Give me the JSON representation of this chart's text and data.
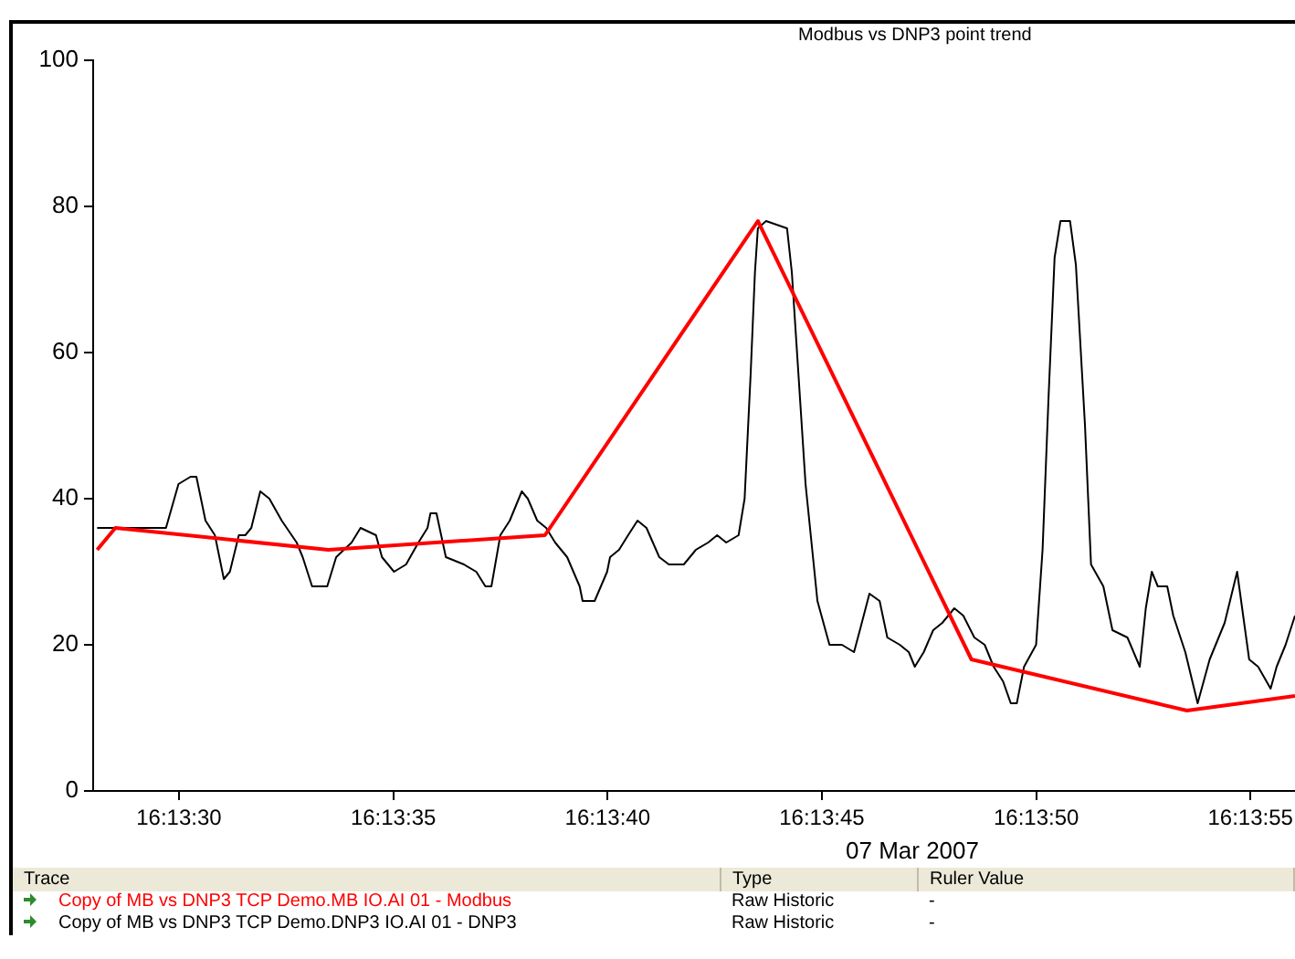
{
  "chart_data": {
    "type": "line",
    "title": "Modbus vs DNP3 point trend",
    "xlabel": "07 Mar 2007",
    "legend_title": "Trace",
    "annotations": [
      "Type",
      "Ruler Value",
      "Raw Historic",
      "-",
      "Raw Historic",
      "-"
    ],
    "xlim": [
      16.224444,
      16.232233
    ],
    "xticks": [
      {
        "value": 16.225,
        "label": "16:13:30"
      },
      {
        "value": 16.226389,
        "label": "16:13:35"
      },
      {
        "value": 16.227778,
        "label": "16:13:40"
      },
      {
        "value": 16.229167,
        "label": "16:13:45"
      },
      {
        "value": 16.230556,
        "label": "16:13:50"
      },
      {
        "value": 16.231944,
        "label": "16:13:55"
      }
    ],
    "ylim": [
      0,
      100
    ],
    "yticks": [
      0,
      20,
      40,
      60,
      80,
      100
    ],
    "grid": false,
    "legend": "bottom",
    "marker": "none",
    "line_style": "solid",
    "series": [
      {
        "name": "Copy of MB vs DNP3 TCP Demo.MB IO.AI 01 - Modbus",
        "color": "#ff0000",
        "x": [
          16.22447,
          16.224588,
          16.225969,
          16.227372,
          16.228752,
          16.230136,
          16.231533,
          16.232233
        ],
        "values": [
          33,
          36,
          33,
          35,
          78,
          18,
          11,
          13
        ]
      },
      {
        "name": "Copy of MB vs DNP3 TCP Demo.DNP3 IO.AI 01 - DNP3",
        "color": "#000000",
        "x": [
          16.22447,
          16.224916,
          16.224997,
          16.225075,
          16.225113,
          16.225172,
          16.225233,
          16.225291,
          16.22533,
          16.225388,
          16.22543,
          16.225469,
          16.225527,
          16.225586,
          16.225666,
          16.225763,
          16.225802,
          16.225863,
          16.225961,
          16.226019,
          16.226119,
          16.226177,
          16.226277,
          16.226316,
          16.226394,
          16.226472,
          16.226552,
          16.226611,
          16.22663,
          16.226669,
          16.22673,
          16.226847,
          16.226927,
          16.226986,
          16.227025,
          16.227083,
          16.227144,
          16.227222,
          16.227261,
          16.227322,
          16.22738,
          16.227438,
          16.227516,
          16.227597,
          16.227616,
          16.227694,
          16.227775,
          16.227794,
          16.227852,
          16.227911,
          16.227972,
          16.22803,
          16.228113,
          16.228175,
          16.228272,
          16.22835,
          16.22843,
          16.228488,
          16.228547,
          16.228627,
          16.228666,
          16.228705,
          16.228733,
          16.228752,
          16.228805,
          16.228941,
          16.228972,
          16.229061,
          16.229138,
          16.229216,
          16.229297,
          16.229375,
          16.229413,
          16.229475,
          16.229541,
          16.229591,
          16.229672,
          16.22973,
          16.229769,
          16.229827,
          16.229888,
          16.229947,
          16.230025,
          16.230083,
          16.230155,
          16.230222,
          16.23028,
          16.230341,
          16.230391,
          16.23043,
          16.230477,
          16.230555,
          16.230597,
          16.230636,
          16.230675,
          16.230713,
          16.230775,
          16.230813,
          16.230872,
          16.230911,
          16.230991,
          16.23105,
          16.231147,
          16.231227,
          16.231266,
          16.231305,
          16.231344,
          16.231405,
          16.231444,
          16.231522,
          16.231602,
          16.23168,
          16.231777,
          16.231858,
          16.231936,
          16.231994,
          16.232075,
          16.232114,
          16.232172,
          16.232233
        ],
        "values": [
          36,
          36,
          42,
          43,
          43,
          37,
          35,
          29,
          30,
          35,
          35,
          36,
          41,
          40,
          37,
          34,
          32,
          28,
          28,
          32,
          34,
          36,
          35,
          32,
          30,
          31,
          34,
          36,
          38,
          38,
          32,
          31,
          30,
          28,
          28,
          35,
          37,
          41,
          40,
          37,
          36,
          34,
          32,
          28,
          26,
          26,
          30,
          32,
          33,
          35,
          37,
          36,
          32,
          31,
          31,
          33,
          34,
          35,
          34,
          35,
          40,
          57,
          71,
          77,
          78,
          77,
          71,
          42,
          26,
          20,
          20,
          19,
          22,
          27,
          26,
          21,
          20,
          19,
          17,
          19,
          22,
          23,
          25,
          24,
          21,
          20,
          17,
          15,
          12,
          12,
          17,
          20,
          33,
          54,
          73,
          78,
          78,
          72,
          50,
          31,
          28,
          22,
          21,
          17,
          25,
          30,
          28,
          28,
          24,
          19,
          12,
          18,
          23,
          30,
          18,
          17,
          14,
          17,
          20,
          24
        ]
      }
    ]
  }
}
